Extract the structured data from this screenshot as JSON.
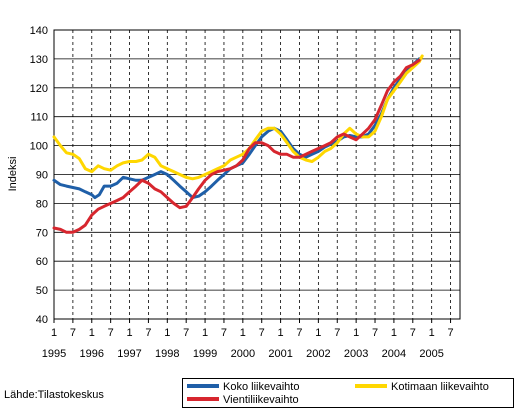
{
  "source_label": "Lähde:Tilastokeskus",
  "chart_data": {
    "type": "line",
    "ylabel": "Indeksi",
    "ylim": [
      40,
      140
    ],
    "yticks": [
      40,
      50,
      60,
      70,
      80,
      90,
      100,
      110,
      120,
      130,
      140
    ],
    "x_start": 1995,
    "x_end": 2005.75,
    "month_tick_labels": [
      "1",
      "7",
      "1",
      "7",
      "1",
      "7",
      "1",
      "7",
      "1",
      "7",
      "1",
      "7",
      "1",
      "7",
      "1",
      "7",
      "1",
      "7",
      "1",
      "7",
      "1",
      "7"
    ],
    "year_labels": [
      "1995",
      "1996",
      "1997",
      "1998",
      "1999",
      "2000",
      "2001",
      "2002",
      "2003",
      "2004",
      "2005"
    ],
    "grid": true,
    "legend_position": "bottom-right",
    "series": [
      {
        "name": "Koko liikevaihto",
        "color": "#1f5fa8",
        "points": [
          [
            1995.0,
            88
          ],
          [
            1995.17,
            86.5
          ],
          [
            1995.33,
            86
          ],
          [
            1995.5,
            85.5
          ],
          [
            1995.67,
            85
          ],
          [
            1995.83,
            84
          ],
          [
            1996.0,
            83
          ],
          [
            1996.08,
            82
          ],
          [
            1996.2,
            83
          ],
          [
            1996.33,
            86
          ],
          [
            1996.5,
            86
          ],
          [
            1996.67,
            87
          ],
          [
            1996.83,
            89
          ],
          [
            1997.0,
            88.5
          ],
          [
            1997.17,
            88
          ],
          [
            1997.33,
            88
          ],
          [
            1997.5,
            89
          ],
          [
            1997.67,
            90
          ],
          [
            1997.83,
            91
          ],
          [
            1998.0,
            90
          ],
          [
            1998.17,
            88
          ],
          [
            1998.33,
            86
          ],
          [
            1998.5,
            84
          ],
          [
            1998.67,
            82
          ],
          [
            1998.83,
            82.5
          ],
          [
            1999.0,
            84
          ],
          [
            1999.17,
            86
          ],
          [
            1999.33,
            88
          ],
          [
            1999.5,
            90
          ],
          [
            1999.67,
            92
          ],
          [
            1999.83,
            93
          ],
          [
            2000.0,
            94
          ],
          [
            2000.17,
            97
          ],
          [
            2000.33,
            100
          ],
          [
            2000.5,
            103
          ],
          [
            2000.67,
            105
          ],
          [
            2000.83,
            106
          ],
          [
            2001.0,
            105
          ],
          [
            2001.17,
            102
          ],
          [
            2001.33,
            99
          ],
          [
            2001.5,
            97
          ],
          [
            2001.67,
            96
          ],
          [
            2001.83,
            97
          ],
          [
            2002.0,
            98
          ],
          [
            2002.17,
            99.5
          ],
          [
            2002.33,
            100.5
          ],
          [
            2002.5,
            101.5
          ],
          [
            2002.67,
            103
          ],
          [
            2002.83,
            103.5
          ],
          [
            2003.0,
            103
          ],
          [
            2003.17,
            103
          ],
          [
            2003.33,
            104
          ],
          [
            2003.5,
            107
          ],
          [
            2003.67,
            111
          ],
          [
            2003.83,
            116
          ],
          [
            2004.0,
            120
          ],
          [
            2004.17,
            123
          ],
          [
            2004.33,
            126
          ],
          [
            2004.5,
            128
          ],
          [
            2004.67,
            130
          ]
        ]
      },
      {
        "name": "Kotimaan liikevaihto",
        "color": "#ffd700",
        "points": [
          [
            1995.0,
            103
          ],
          [
            1995.17,
            100
          ],
          [
            1995.33,
            97.5
          ],
          [
            1995.5,
            97
          ],
          [
            1995.67,
            95.5
          ],
          [
            1995.83,
            92
          ],
          [
            1996.0,
            91
          ],
          [
            1996.17,
            93
          ],
          [
            1996.33,
            92
          ],
          [
            1996.5,
            91.5
          ],
          [
            1996.67,
            93
          ],
          [
            1996.83,
            94
          ],
          [
            1997.0,
            94.5
          ],
          [
            1997.17,
            94.5
          ],
          [
            1997.33,
            95
          ],
          [
            1997.5,
            97
          ],
          [
            1997.67,
            96
          ],
          [
            1997.83,
            93
          ],
          [
            1998.0,
            92
          ],
          [
            1998.17,
            91
          ],
          [
            1998.33,
            90
          ],
          [
            1998.5,
            89
          ],
          [
            1998.67,
            88.5
          ],
          [
            1998.83,
            89
          ],
          [
            1999.0,
            90
          ],
          [
            1999.17,
            91
          ],
          [
            1999.33,
            92
          ],
          [
            1999.5,
            93
          ],
          [
            1999.67,
            95
          ],
          [
            1999.83,
            96
          ],
          [
            2000.0,
            97
          ],
          [
            2000.17,
            99
          ],
          [
            2000.33,
            102
          ],
          [
            2000.5,
            105
          ],
          [
            2000.67,
            106
          ],
          [
            2000.83,
            106
          ],
          [
            2001.0,
            104
          ],
          [
            2001.17,
            101
          ],
          [
            2001.33,
            98
          ],
          [
            2001.5,
            96
          ],
          [
            2001.67,
            95
          ],
          [
            2001.83,
            94.5
          ],
          [
            2002.0,
            96
          ],
          [
            2002.17,
            98
          ],
          [
            2002.33,
            99
          ],
          [
            2002.5,
            101
          ],
          [
            2002.67,
            104
          ],
          [
            2002.83,
            106
          ],
          [
            2003.0,
            104
          ],
          [
            2003.17,
            103
          ],
          [
            2003.33,
            103
          ],
          [
            2003.5,
            105
          ],
          [
            2003.67,
            110
          ],
          [
            2003.83,
            116
          ],
          [
            2004.0,
            119
          ],
          [
            2004.17,
            122
          ],
          [
            2004.33,
            125
          ],
          [
            2004.5,
            127
          ],
          [
            2004.67,
            129
          ],
          [
            2004.75,
            131
          ]
        ]
      },
      {
        "name": "Vientiliikevaihto",
        "color": "#d7262e",
        "points": [
          [
            1995.0,
            71.5
          ],
          [
            1995.17,
            71
          ],
          [
            1995.33,
            70
          ],
          [
            1995.5,
            70
          ],
          [
            1995.67,
            71
          ],
          [
            1995.83,
            72.5
          ],
          [
            1996.0,
            76
          ],
          [
            1996.17,
            78
          ],
          [
            1996.33,
            79
          ],
          [
            1996.5,
            80
          ],
          [
            1996.67,
            81
          ],
          [
            1996.83,
            82
          ],
          [
            1997.0,
            84
          ],
          [
            1997.17,
            86
          ],
          [
            1997.33,
            88
          ],
          [
            1997.5,
            87
          ],
          [
            1997.67,
            85
          ],
          [
            1997.83,
            84
          ],
          [
            1998.0,
            82
          ],
          [
            1998.17,
            80
          ],
          [
            1998.33,
            78.5
          ],
          [
            1998.5,
            79
          ],
          [
            1998.67,
            82
          ],
          [
            1998.83,
            85
          ],
          [
            1999.0,
            88
          ],
          [
            1999.17,
            90
          ],
          [
            1999.33,
            91
          ],
          [
            1999.5,
            91.5
          ],
          [
            1999.67,
            92
          ],
          [
            1999.83,
            93
          ],
          [
            2000.0,
            95
          ],
          [
            2000.17,
            99
          ],
          [
            2000.33,
            101
          ],
          [
            2000.5,
            101
          ],
          [
            2000.67,
            100
          ],
          [
            2000.83,
            98
          ],
          [
            2001.0,
            97
          ],
          [
            2001.17,
            97
          ],
          [
            2001.33,
            96
          ],
          [
            2001.5,
            96
          ],
          [
            2001.67,
            97
          ],
          [
            2001.83,
            98
          ],
          [
            2002.0,
            99
          ],
          [
            2002.17,
            100
          ],
          [
            2002.33,
            101
          ],
          [
            2002.5,
            103
          ],
          [
            2002.67,
            104
          ],
          [
            2002.83,
            103
          ],
          [
            2003.0,
            102
          ],
          [
            2003.17,
            104
          ],
          [
            2003.33,
            106
          ],
          [
            2003.5,
            109
          ],
          [
            2003.67,
            114
          ],
          [
            2003.83,
            119
          ],
          [
            2004.0,
            122
          ],
          [
            2004.17,
            124
          ],
          [
            2004.33,
            127
          ],
          [
            2004.5,
            128
          ],
          [
            2004.67,
            129.5
          ]
        ]
      }
    ]
  }
}
